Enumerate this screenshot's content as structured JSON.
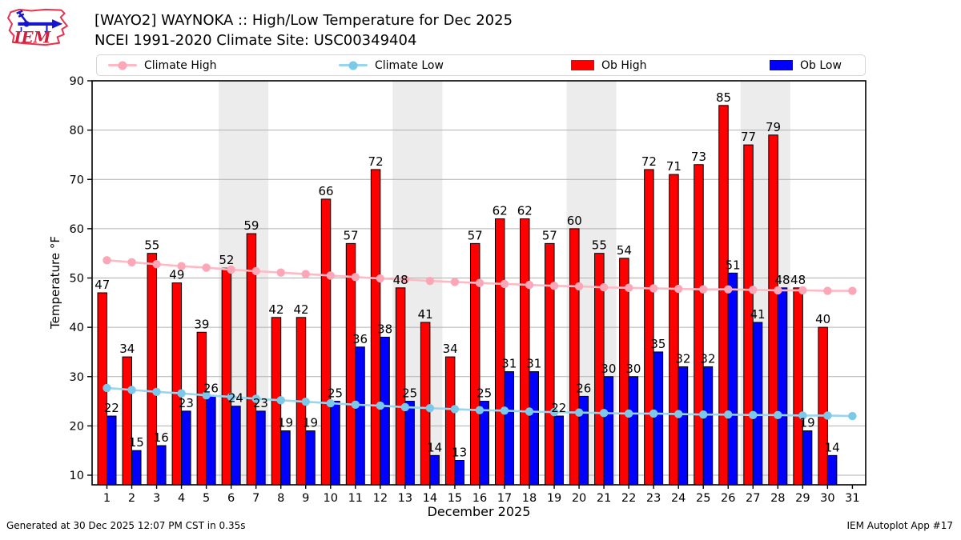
{
  "header": {
    "logo_text": "IEM",
    "title_line1": "[WAYO2] WAYNOKA :: High/Low Temperature for Dec 2025",
    "title_line2": "NCEI 1991-2020 Climate Site: USC00349404"
  },
  "legend": [
    {
      "label": "Climate High",
      "type": "line",
      "color": "#ffb9c5",
      "dot_color": "#fba7b7"
    },
    {
      "label": "Climate Low",
      "type": "line",
      "color": "#99d5ee",
      "dot_color": "#7cc8e8"
    },
    {
      "label": "Ob High",
      "type": "patch",
      "color": "#ff0000"
    },
    {
      "label": "Ob Low",
      "type": "patch",
      "color": "#0000ff"
    }
  ],
  "chart_data": {
    "type": "bar",
    "title": "[WAYO2] WAYNOKA :: High/Low Temperature for Dec 2025",
    "subtitle": "NCEI 1991-2020 Climate Site: USC00349404",
    "xlabel": "December 2025",
    "ylabel": "Temperature °F",
    "x_days": [
      1,
      2,
      3,
      4,
      5,
      6,
      7,
      8,
      9,
      10,
      11,
      12,
      13,
      14,
      15,
      16,
      17,
      18,
      19,
      20,
      21,
      22,
      23,
      24,
      25,
      26,
      27,
      28,
      29,
      30,
      31
    ],
    "yticks": [
      10,
      20,
      30,
      40,
      50,
      60,
      70,
      80,
      90
    ],
    "ylim": [
      8,
      90
    ],
    "grid": "horizontal",
    "gridline_color": "#b0b0b0",
    "weekend_band_color": "#ececec",
    "bar_edge_color": "#000000",
    "weekend_shading_days": [
      [
        6,
        7
      ],
      [
        13,
        14
      ],
      [
        20,
        21
      ],
      [
        27,
        28
      ]
    ],
    "series": [
      {
        "name": "Ob High",
        "type": "bar",
        "color": "#ff0000",
        "label_side": "left",
        "values": [
          47,
          34,
          55,
          49,
          39,
          52,
          59,
          42,
          42,
          66,
          57,
          72,
          48,
          41,
          34,
          57,
          62,
          62,
          57,
          60,
          55,
          54,
          72,
          71,
          73,
          85,
          77,
          79,
          48,
          40,
          null
        ]
      },
      {
        "name": "Ob Low",
        "type": "bar",
        "color": "#0000ff",
        "label_side": "right",
        "values": [
          22,
          15,
          16,
          23,
          26,
          24,
          23,
          19,
          19,
          25,
          36,
          38,
          25,
          14,
          13,
          25,
          31,
          31,
          22,
          26,
          30,
          30,
          35,
          32,
          32,
          51,
          41,
          48,
          19,
          14,
          null
        ]
      },
      {
        "name": "Climate High",
        "type": "line",
        "color": "#ffb9c5",
        "dot_color": "#fba7b7",
        "values": [
          53.6,
          53.2,
          52.8,
          52.4,
          52.1,
          51.7,
          51.4,
          51.1,
          50.8,
          50.5,
          50.2,
          49.9,
          49.7,
          49.4,
          49.2,
          49.0,
          48.8,
          48.6,
          48.4,
          48.3,
          48.1,
          48.0,
          47.9,
          47.8,
          47.7,
          47.7,
          47.6,
          47.5,
          47.5,
          47.4,
          47.4
        ]
      },
      {
        "name": "Climate Low",
        "type": "line",
        "color": "#99d5ee",
        "dot_color": "#7cc8e8",
        "values": [
          27.7,
          27.3,
          26.9,
          26.6,
          26.2,
          25.9,
          25.5,
          25.2,
          24.9,
          24.6,
          24.3,
          24.1,
          23.8,
          23.6,
          23.4,
          23.2,
          23.1,
          22.9,
          22.8,
          22.7,
          22.6,
          22.5,
          22.5,
          22.4,
          22.3,
          22.3,
          22.2,
          22.2,
          22.1,
          22.1,
          22.0
        ]
      }
    ]
  },
  "footer": {
    "left": "Generated at 30 Dec 2025 12:07 PM CST in 0.35s",
    "right": "IEM Autoplot App #17"
  }
}
